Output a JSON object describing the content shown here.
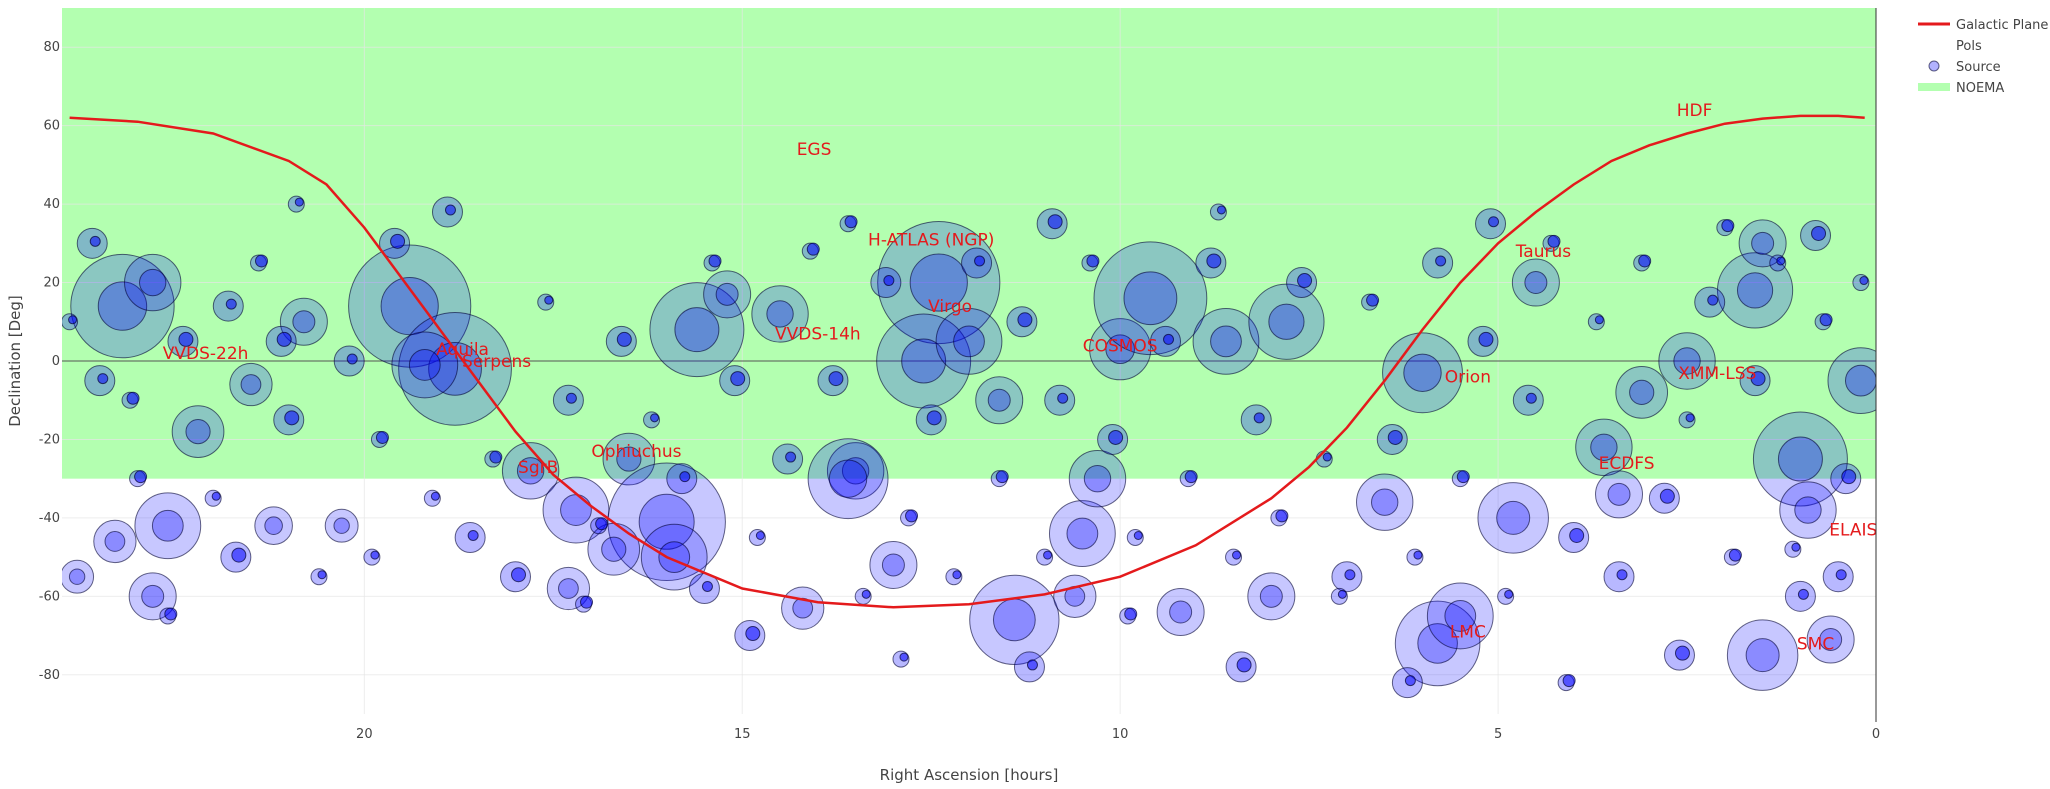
{
  "chart_data": {
    "type": "scatter",
    "xlabel": "Right Ascension [hours]",
    "ylabel": "Declination [Deg]",
    "xlim": [
      24,
      0
    ],
    "ylim": [
      -90,
      90
    ],
    "x_ticks": [
      20,
      15,
      10,
      5,
      0
    ],
    "y_ticks": [
      -80,
      -60,
      -40,
      -20,
      0,
      20,
      40,
      60,
      80
    ],
    "grid": true,
    "legend_position": "top-right",
    "legend": [
      {
        "name": "Galactic Plane",
        "kind": "line"
      },
      {
        "name": "Pols",
        "kind": "text"
      },
      {
        "name": "Source",
        "kind": "marker"
      },
      {
        "name": "NOEMA",
        "kind": "band"
      }
    ],
    "noema_band": {
      "dec_min": -30,
      "dec_max": 90
    },
    "colors": {
      "galactic_plane": "#e41a1c",
      "poi_text": "#e41a1c",
      "source_fill": "#0000ff",
      "source_stroke": "#000033",
      "noema_band": "#b3ffb0",
      "grid": "#e6e6e6"
    },
    "galactic_plane": [
      [
        23.9,
        62
      ],
      [
        23.0,
        61
      ],
      [
        22.0,
        58
      ],
      [
        21.0,
        51
      ],
      [
        20.5,
        45
      ],
      [
        20.0,
        34
      ],
      [
        19.5,
        21
      ],
      [
        19.0,
        8
      ],
      [
        18.5,
        -5
      ],
      [
        18.0,
        -18
      ],
      [
        17.5,
        -29
      ],
      [
        17.0,
        -37
      ],
      [
        16.5,
        -44
      ],
      [
        16.0,
        -50
      ],
      [
        15.0,
        -58
      ],
      [
        14.0,
        -61.5
      ],
      [
        13.0,
        -62.8
      ],
      [
        12.0,
        -62
      ],
      [
        11.0,
        -59.5
      ],
      [
        10.0,
        -55
      ],
      [
        9.0,
        -47
      ],
      [
        8.0,
        -35
      ],
      [
        7.5,
        -27
      ],
      [
        7.0,
        -17
      ],
      [
        6.5,
        -5
      ],
      [
        6.0,
        8
      ],
      [
        5.5,
        20
      ],
      [
        5.0,
        30
      ],
      [
        4.5,
        38
      ],
      [
        4.0,
        45
      ],
      [
        3.5,
        51
      ],
      [
        3.0,
        55
      ],
      [
        2.5,
        58
      ],
      [
        2.0,
        60.5
      ],
      [
        1.5,
        61.8
      ],
      [
        1.0,
        62.5
      ],
      [
        0.5,
        62.5
      ],
      [
        0.15,
        62
      ]
    ],
    "pols": [
      {
        "name": "HDF",
        "ra": 2.4,
        "dec": 64
      },
      {
        "name": "EGS",
        "ra": 14.05,
        "dec": 54
      },
      {
        "name": "H-ATLAS (NGP)",
        "ra": 12.5,
        "dec": 31
      },
      {
        "name": "Taurus",
        "ra": 4.4,
        "dec": 28
      },
      {
        "name": "Virgo",
        "ra": 12.25,
        "dec": 14
      },
      {
        "name": "VVDS-14h",
        "ra": 14.0,
        "dec": 7
      },
      {
        "name": "COSMOS",
        "ra": 10.0,
        "dec": 4
      },
      {
        "name": "VVDS-22h",
        "ra": 22.1,
        "dec": 2
      },
      {
        "name": "Aquila",
        "ra": 18.7,
        "dec": 3
      },
      {
        "name": "Serpens",
        "ra": 18.25,
        "dec": 0
      },
      {
        "name": "Orion",
        "ra": 5.4,
        "dec": -4
      },
      {
        "name": "XMM-LSS",
        "ra": 2.1,
        "dec": -3
      },
      {
        "name": "Ophiuchus",
        "ra": 16.4,
        "dec": -23
      },
      {
        "name": "SgrB",
        "ra": 17.7,
        "dec": -27
      },
      {
        "name": "ECDFS",
        "ra": 3.3,
        "dec": -26
      },
      {
        "name": "ELAIS",
        "ra": 0.3,
        "dec": -43
      },
      {
        "name": "LMC",
        "ra": 5.4,
        "dec": -69
      },
      {
        "name": "SMC",
        "ra": 0.8,
        "dec": -72
      }
    ],
    "sources_big": [
      [
        23.2,
        14,
        22
      ],
      [
        22.8,
        20,
        12
      ],
      [
        22.2,
        -18,
        11
      ],
      [
        21.5,
        -6,
        9
      ],
      [
        21.2,
        -42,
        8
      ],
      [
        22.6,
        -42,
        14
      ],
      [
        22.8,
        -60,
        10
      ],
      [
        23.8,
        -55,
        7
      ],
      [
        23.3,
        -46,
        9
      ],
      [
        20.3,
        -42,
        7
      ],
      [
        19.4,
        14,
        26
      ],
      [
        18.8,
        -2,
        24
      ],
      [
        19.2,
        -1,
        14
      ],
      [
        17.8,
        -28,
        12
      ],
      [
        17.2,
        -38,
        14
      ],
      [
        16.5,
        -25,
        11
      ],
      [
        16.0,
        -41,
        25
      ],
      [
        15.9,
        -50,
        14
      ],
      [
        16.7,
        -48,
        11
      ],
      [
        15.6,
        8,
        20
      ],
      [
        15.2,
        17,
        10
      ],
      [
        14.5,
        12,
        12
      ],
      [
        13.5,
        -28,
        12
      ],
      [
        13.6,
        -30,
        17
      ],
      [
        12.4,
        20,
        26
      ],
      [
        12.6,
        0,
        20
      ],
      [
        12.0,
        5,
        14
      ],
      [
        11.6,
        -10,
        10
      ],
      [
        11.4,
        -66,
        19
      ],
      [
        10.5,
        -44,
        14
      ],
      [
        10.6,
        -60,
        9
      ],
      [
        10.0,
        3,
        13
      ],
      [
        9.6,
        16,
        24
      ],
      [
        8.6,
        5,
        14
      ],
      [
        10.3,
        -30,
        12
      ],
      [
        8.0,
        -60,
        10
      ],
      [
        6.0,
        -3,
        17
      ],
      [
        5.8,
        -72,
        18
      ],
      [
        5.5,
        -65,
        14
      ],
      [
        4.8,
        -40,
        15
      ],
      [
        4.5,
        20,
        10
      ],
      [
        3.6,
        -22,
        12
      ],
      [
        3.4,
        -34,
        10
      ],
      [
        2.5,
        0,
        12
      ],
      [
        1.6,
        18,
        16
      ],
      [
        1.5,
        30,
        10
      ],
      [
        1.0,
        -25,
        20
      ],
      [
        0.9,
        -38,
        12
      ],
      [
        1.5,
        -75,
        15
      ],
      [
        0.6,
        -71,
        10
      ],
      [
        0.2,
        -5,
        14
      ],
      [
        9.2,
        -64,
        10
      ],
      [
        14.2,
        -63,
        9
      ],
      [
        13.0,
        -52,
        10
      ],
      [
        7.8,
        10,
        16
      ],
      [
        6.5,
        -36,
        12
      ],
      [
        17.3,
        -58,
        9
      ],
      [
        20.8,
        10,
        10
      ],
      [
        3.1,
        -8,
        11
      ]
    ],
    "sources_medium": [
      [
        23.9,
        10
      ],
      [
        23.5,
        -5
      ],
      [
        23.0,
        -30
      ],
      [
        22.4,
        5
      ],
      [
        22.0,
        -35
      ],
      [
        21.8,
        14
      ],
      [
        21.4,
        25
      ],
      [
        21.0,
        -15
      ],
      [
        20.6,
        -55
      ],
      [
        20.2,
        0
      ],
      [
        19.8,
        -20
      ],
      [
        19.6,
        30
      ],
      [
        19.1,
        -35
      ],
      [
        18.6,
        -45
      ],
      [
        18.3,
        -25
      ],
      [
        18.0,
        -55
      ],
      [
        17.6,
        15
      ],
      [
        17.3,
        -10
      ],
      [
        16.9,
        -42
      ],
      [
        16.6,
        5
      ],
      [
        16.2,
        -15
      ],
      [
        15.8,
        -30
      ],
      [
        15.4,
        25
      ],
      [
        15.1,
        -5
      ],
      [
        14.8,
        -45
      ],
      [
        14.4,
        -25
      ],
      [
        14.1,
        28
      ],
      [
        13.8,
        -5
      ],
      [
        13.4,
        -60
      ],
      [
        13.1,
        20
      ],
      [
        12.8,
        -40
      ],
      [
        12.5,
        -15
      ],
      [
        12.2,
        -55
      ],
      [
        11.9,
        25
      ],
      [
        11.6,
        -30
      ],
      [
        11.3,
        10
      ],
      [
        11.0,
        -50
      ],
      [
        10.8,
        -10
      ],
      [
        10.4,
        25
      ],
      [
        10.1,
        -20
      ],
      [
        9.8,
        -45
      ],
      [
        9.4,
        5
      ],
      [
        9.1,
        -30
      ],
      [
        8.8,
        25
      ],
      [
        8.5,
        -50
      ],
      [
        8.2,
        -15
      ],
      [
        7.9,
        -40
      ],
      [
        7.6,
        20
      ],
      [
        7.3,
        -25
      ],
      [
        7.0,
        -55
      ],
      [
        6.7,
        15
      ],
      [
        6.4,
        -20
      ],
      [
        6.1,
        -50
      ],
      [
        5.8,
        25
      ],
      [
        5.5,
        -30
      ],
      [
        5.2,
        5
      ],
      [
        4.9,
        -60
      ],
      [
        4.6,
        -10
      ],
      [
        4.3,
        30
      ],
      [
        4.0,
        -45
      ],
      [
        3.7,
        10
      ],
      [
        3.4,
        -55
      ],
      [
        3.1,
        25
      ],
      [
        2.8,
        -35
      ],
      [
        2.5,
        -15
      ],
      [
        2.2,
        15
      ],
      [
        1.9,
        -50
      ],
      [
        1.6,
        -5
      ],
      [
        1.3,
        25
      ],
      [
        1.0,
        -60
      ],
      [
        0.7,
        10
      ],
      [
        0.4,
        -30
      ],
      [
        0.2,
        20
      ],
      [
        23.6,
        30
      ],
      [
        22.6,
        -65
      ],
      [
        21.7,
        -50
      ],
      [
        20.9,
        40
      ],
      [
        18.9,
        38
      ],
      [
        17.1,
        -62
      ],
      [
        14.9,
        -70
      ],
      [
        12.9,
        -76
      ],
      [
        11.2,
        -78
      ],
      [
        9.9,
        -65
      ],
      [
        8.4,
        -78
      ],
      [
        7.1,
        -60
      ],
      [
        6.2,
        -82
      ],
      [
        4.1,
        -82
      ],
      [
        2.6,
        -75
      ],
      [
        1.1,
        -48
      ],
      [
        0.5,
        -55
      ],
      [
        23.1,
        -10
      ],
      [
        21.1,
        5
      ],
      [
        19.9,
        -50
      ],
      [
        15.5,
        -58
      ],
      [
        13.6,
        35
      ],
      [
        10.9,
        35
      ],
      [
        8.7,
        38
      ],
      [
        5.1,
        35
      ],
      [
        2.0,
        34
      ],
      [
        0.8,
        32
      ]
    ]
  }
}
